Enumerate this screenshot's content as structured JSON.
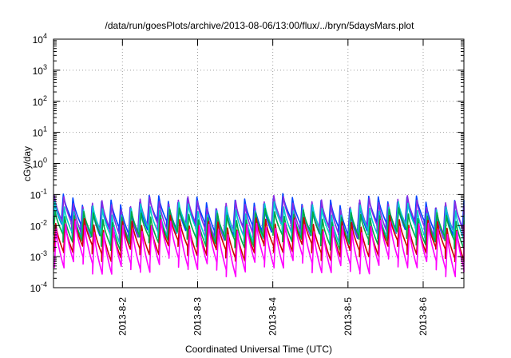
{
  "chart_data": {
    "type": "line",
    "title": "/data/run/goesPlots/archive/2013-08-06/13:00/flux/../bryn/5daysMars.plot",
    "xlabel": "Coordinated Universal Time (UTC)",
    "ylabel": "cGy/day",
    "yscale": "log",
    "ylim": [
      0.0001,
      10000
    ],
    "xlim": [
      "2013-08-01T02:00",
      "2013-08-06T13:00"
    ],
    "grid": true,
    "x_ticks": [
      "2013-8-2",
      "2013-8-3",
      "2013-8-4",
      "2013-8-5",
      "2013-8-6"
    ],
    "y_ticks": [
      {
        "base": "10",
        "exp": "-4"
      },
      {
        "base": "10",
        "exp": "-3"
      },
      {
        "base": "10",
        "exp": "-2"
      },
      {
        "base": "10",
        "exp": "-1"
      },
      {
        "base": "10",
        "exp": "0"
      },
      {
        "base": "10",
        "exp": "1"
      },
      {
        "base": "10",
        "exp": "2"
      },
      {
        "base": "10",
        "exp": "3"
      },
      {
        "base": "10",
        "exp": "4"
      }
    ],
    "sawtooth": {
      "cycles": 43,
      "description_note": "each series rises sharply to a peak then decays until the next peak"
    },
    "series": [
      {
        "color": "#0044ff",
        "peak": 0.06,
        "trough": 0.008
      },
      {
        "color": "#8a2be2",
        "peak": 0.055,
        "trough": 0.0065
      },
      {
        "color": "#00cccc",
        "peak": 0.035,
        "trough": 0.005
      },
      {
        "color": "#00aa44",
        "peak": 0.022,
        "trough": 0.0035
      },
      {
        "color": "#cc0000",
        "peak": 0.012,
        "trough": 0.0015
      },
      {
        "color": "#ff00ff",
        "peak": 0.009,
        "trough": 0.0005
      }
    ]
  }
}
